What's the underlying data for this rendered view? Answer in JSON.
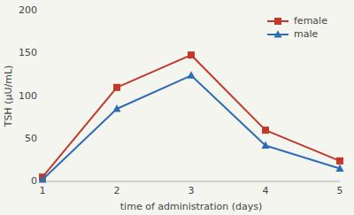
{
  "chart_data": {
    "type": "line",
    "x": [
      1,
      2,
      3,
      4,
      5
    ],
    "series": [
      {
        "name": "female",
        "color": "#c0392b",
        "marker": "square",
        "values": [
          5,
          110,
          148,
          60,
          24
        ]
      },
      {
        "name": "male",
        "color": "#2e6db4",
        "marker": "triangle",
        "values": [
          2,
          85,
          124,
          42,
          15
        ]
      }
    ],
    "xlabel": "time of administration (days)",
    "ylabel": "TSH (μU/mL)",
    "xlim": [
      1,
      5
    ],
    "ylim": [
      0,
      200
    ],
    "xticks": [
      1,
      2,
      3,
      4,
      5
    ],
    "yticks": [
      0,
      50,
      100,
      150,
      200
    ],
    "grid": false,
    "legend": "upper right"
  }
}
